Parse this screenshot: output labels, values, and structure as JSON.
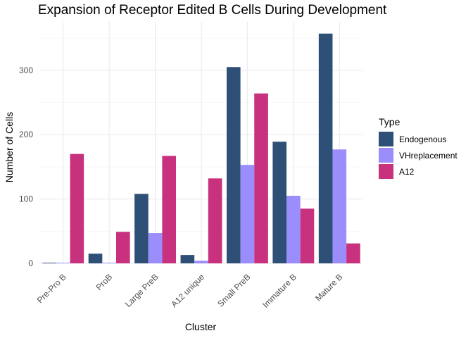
{
  "chart_data": {
    "type": "bar",
    "title": "Expansion of Receptor Edited B Cells During Development",
    "xlabel": "Cluster",
    "ylabel": "Number of Cells",
    "categories": [
      "Pre-Pro B",
      "ProB",
      "Large PreB",
      "A12 unique",
      "Small PreB",
      "Immature B",
      "Mature B"
    ],
    "series": [
      {
        "name": "Endogenous",
        "color": "#2e5077",
        "values": [
          1,
          15,
          108,
          13,
          305,
          189,
          357
        ]
      },
      {
        "name": "VHreplacement",
        "color": "#9b8dfb",
        "values": [
          1,
          1,
          47,
          4,
          153,
          105,
          177
        ]
      },
      {
        "name": "A12",
        "color": "#c7317e",
        "values": [
          170,
          49,
          167,
          132,
          264,
          85,
          31
        ]
      }
    ],
    "ylim": [
      0,
      375
    ],
    "yticks": [
      0,
      100,
      200,
      300
    ],
    "grid": true,
    "legend": {
      "title": "Type",
      "position": "right"
    }
  }
}
